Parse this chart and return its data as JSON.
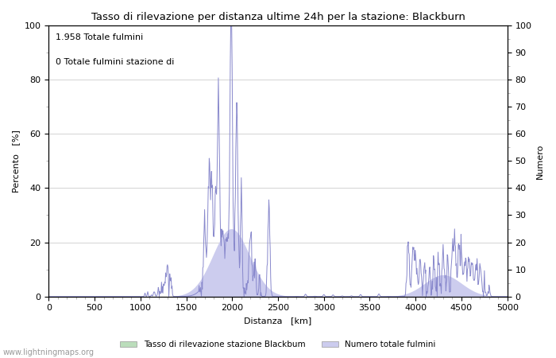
{
  "title": "Tasso di rilevazione per distanza ultime 24h per la stazione: Blackburn",
  "xlabel": "Distanza   [km]",
  "ylabel_left": "Percento   [%]",
  "ylabel_right": "Numero",
  "annotation_line1": "1.958 Totale fulmini",
  "annotation_line2": "0 Totale fulmini stazione di",
  "legend_label1": "Tasso di rilevazione stazione Blackbum",
  "legend_label2": "Numero totale fulmini",
  "legend_color1": "#bbddbb",
  "legend_color2": "#ccccee",
  "watermark": "www.lightningmaps.org",
  "xlim": [
    0,
    5000
  ],
  "ylim": [
    0,
    100
  ],
  "xticks": [
    0,
    500,
    1000,
    1500,
    2000,
    2500,
    3000,
    3500,
    4000,
    4500,
    5000
  ],
  "yticks_left": [
    0,
    20,
    40,
    60,
    80,
    100
  ],
  "yticks_right": [
    0,
    10,
    20,
    30,
    40,
    50,
    60,
    70,
    80,
    90,
    100
  ],
  "line_color": "#8888cc",
  "fill_color": "#ccccee",
  "green_fill_color": "#bbddbb",
  "background_color": "#ffffff",
  "grid_color": "#cccccc"
}
